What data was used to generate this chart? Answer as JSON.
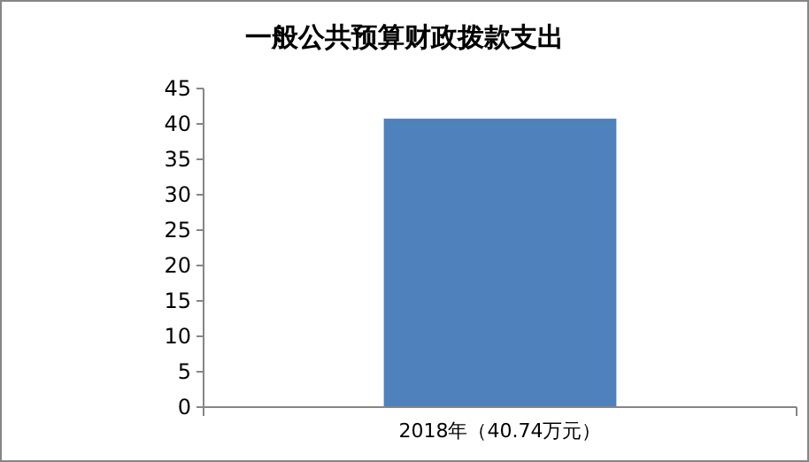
{
  "chart_data": {
    "type": "bar",
    "title": "一般公共预算财政拨款支出",
    "categories": [
      "2018年（40.74万元）"
    ],
    "values": [
      40.74
    ],
    "color": "#4f81bd",
    "ylim": [
      0,
      45
    ],
    "yticks": [
      0,
      5,
      10,
      15,
      20,
      25,
      30,
      35,
      40,
      45
    ],
    "grid": false
  }
}
